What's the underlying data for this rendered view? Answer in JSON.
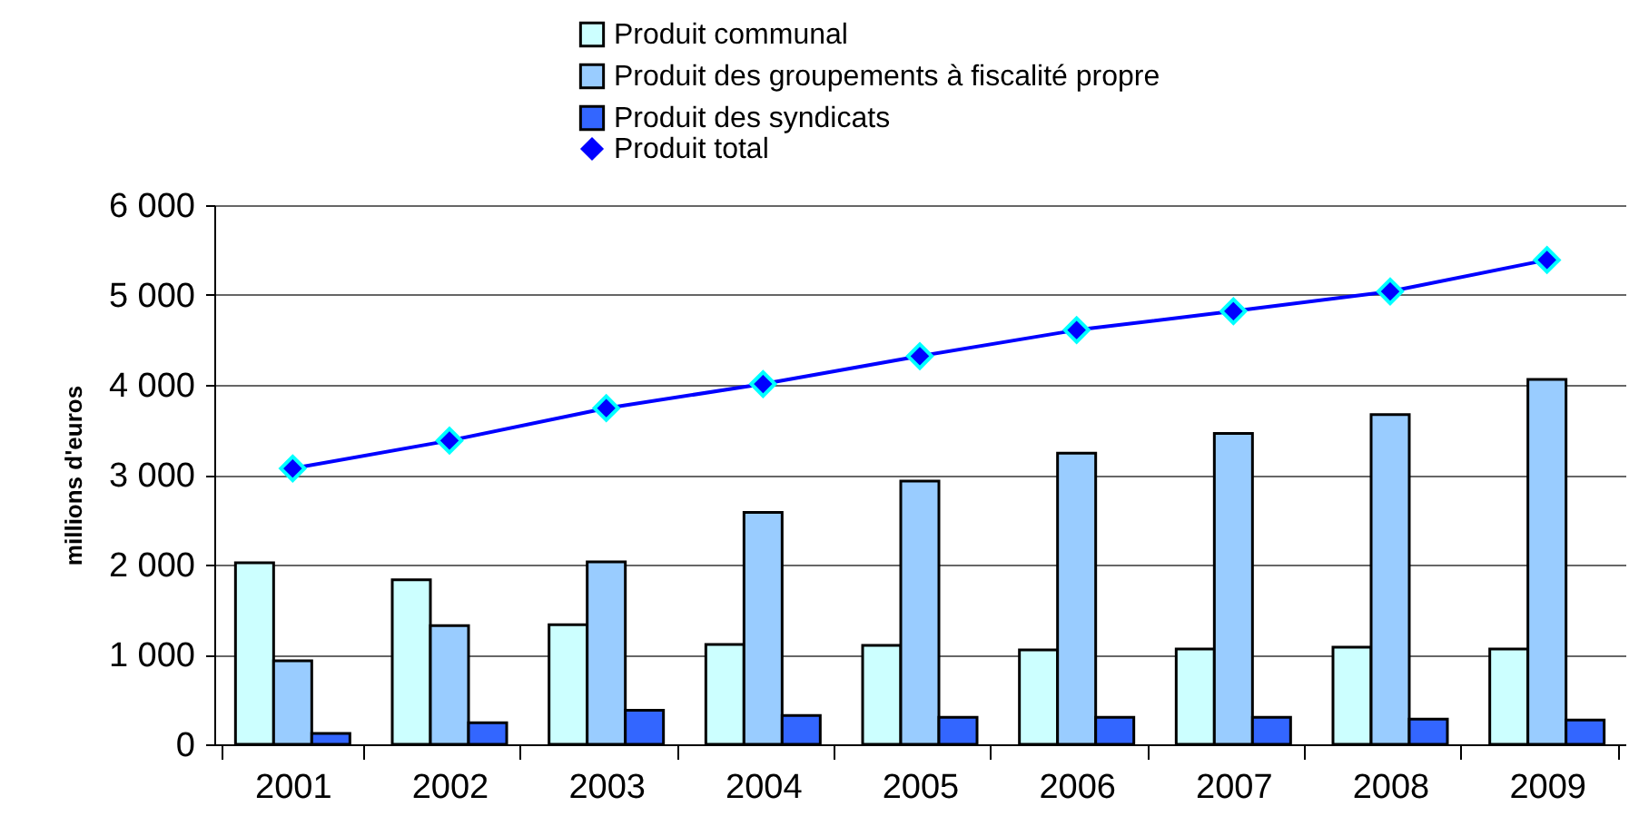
{
  "chart_data": {
    "type": "bar",
    "ylabel": "millions d'euros",
    "categories": [
      "2001",
      "2002",
      "2003",
      "2004",
      "2005",
      "2006",
      "2007",
      "2008",
      "2009"
    ],
    "series": [
      {
        "name": "Produit communal",
        "color": "#ccffff",
        "values": [
          2020,
          1830,
          1330,
          1110,
          1100,
          1050,
          1060,
          1080,
          1060
        ]
      },
      {
        "name": "Produit des groupements à fiscalité propre",
        "color": "#99ccff",
        "values": [
          930,
          1320,
          2030,
          2580,
          2930,
          3240,
          3460,
          3670,
          4060
        ]
      },
      {
        "name": "Produit des syndicats",
        "color": "#3366ff",
        "values": [
          120,
          240,
          380,
          320,
          300,
          300,
          300,
          280,
          270
        ]
      },
      {
        "name": "Produit total",
        "type": "line",
        "color": "#0000ff",
        "values": [
          3070,
          3380,
          3740,
          4010,
          4320,
          4610,
          4820,
          5040,
          5390
        ]
      }
    ],
    "ylim": [
      0,
      6000
    ],
    "yticks": [
      {
        "value": 0,
        "label": "0"
      },
      {
        "value": 1000,
        "label": "1 000"
      },
      {
        "value": 2000,
        "label": "2 000"
      },
      {
        "value": 3000,
        "label": "3 000"
      },
      {
        "value": 4000,
        "label": "4 000"
      },
      {
        "value": 5000,
        "label": "5 000"
      },
      {
        "value": 6000,
        "label": "6 000"
      }
    ],
    "grid": "y",
    "legend": "top",
    "marker": "diamond"
  }
}
